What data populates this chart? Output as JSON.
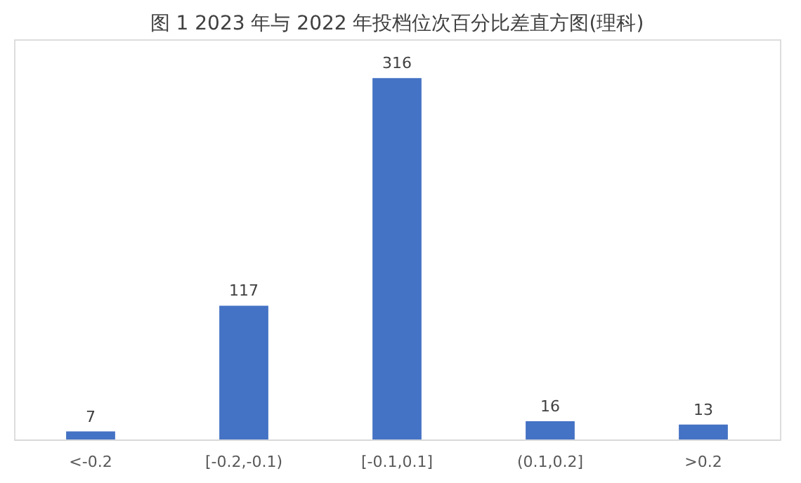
{
  "chart_data": {
    "type": "bar",
    "title": "图 1 2023 年与 2022 年投档位次百分比差直方图(理科)",
    "categories": [
      "<-0.2",
      "[-0.2,-0.1)",
      "[-0.1,0.1]",
      "(0.1,0.2]",
      ">0.2"
    ],
    "values": [
      7,
      117,
      316,
      16,
      13
    ],
    "color": "#4472c4",
    "data_labels": true,
    "grid": false
  }
}
